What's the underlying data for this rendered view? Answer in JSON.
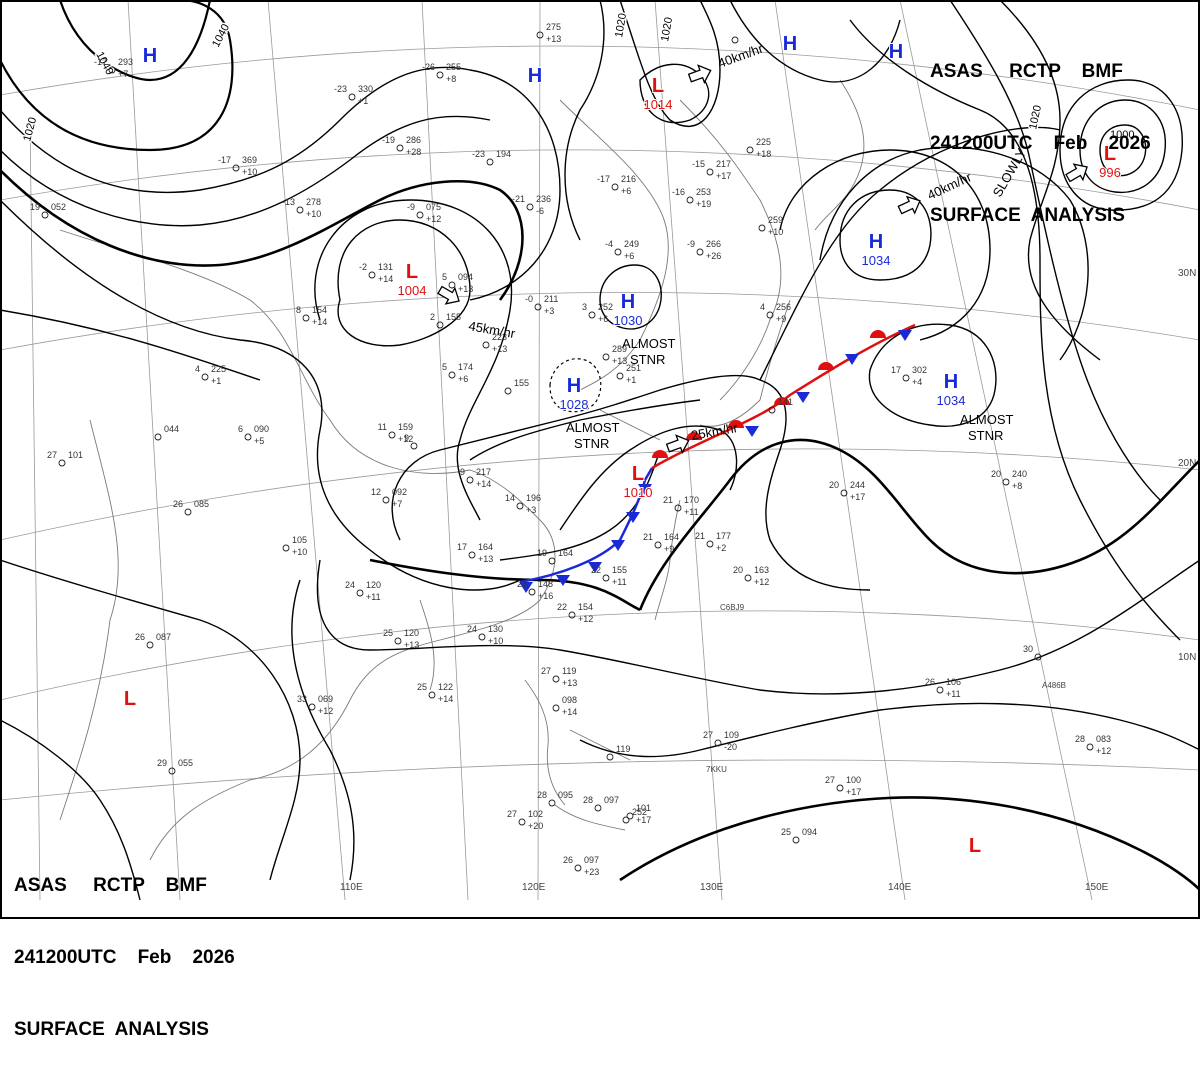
{
  "header": {
    "line1": "ASAS     RCTP    BMF",
    "line2": "241200UTC    Feb    2026",
    "line3": "SURFACE  ANALYSIS"
  },
  "colors": {
    "high": "#1a2bd6",
    "low": "#e01010",
    "warm_front": "#e01010",
    "cold_front": "#1a2bd6",
    "isobar": "#000000",
    "grid": "#9a9a9a",
    "coast": "#7a7a7a"
  },
  "lat_labels": [
    "30N",
    "20N",
    "10N"
  ],
  "lon_labels": [
    "110E",
    "120E",
    "130E",
    "140E",
    "150E"
  ],
  "isobar_labels": [
    "1040",
    "1040",
    "1020",
    "1020",
    "1020",
    "1020",
    "1000"
  ],
  "pressure_centers": [
    {
      "type": "H",
      "value": ""
    },
    {
      "type": "H",
      "value": ""
    },
    {
      "type": "L",
      "value": "1014"
    },
    {
      "type": "H",
      "value": ""
    },
    {
      "type": "H",
      "value": ""
    },
    {
      "type": "L",
      "value": "996"
    },
    {
      "type": "L",
      "value": "1004"
    },
    {
      "type": "H",
      "value": "1030"
    },
    {
      "type": "H",
      "value": "1028"
    },
    {
      "type": "H",
      "value": "1034"
    },
    {
      "type": "H",
      "value": "1034"
    },
    {
      "type": "L",
      "value": "1010"
    },
    {
      "type": "L",
      "value": ""
    },
    {
      "type": "L",
      "value": ""
    }
  ],
  "annotations": [
    {
      "text": "40km/hr"
    },
    {
      "text": "40km/hr"
    },
    {
      "text": "SLOWLY"
    },
    {
      "text": "45km/hr"
    },
    {
      "text": "25km/hr"
    },
    {
      "text": "ALMOST STNR"
    },
    {
      "text": "ALMOST STNR"
    },
    {
      "text": "ALMOST STNR"
    }
  ],
  "station_plots": [
    {
      "t": "-17",
      "p": "293",
      "c": "+7"
    },
    {
      "t": "-23",
      "p": "330",
      "c": "+1"
    },
    {
      "t": "-26",
      "p": "255",
      "c": "+8"
    },
    {
      "t": "",
      "p": "275",
      "c": "+13"
    },
    {
      "t": "",
      "p": "",
      "c": ""
    },
    {
      "t": "-17",
      "p": "369",
      "c": "+10"
    },
    {
      "t": "-19",
      "p": "286",
      "c": "+28"
    },
    {
      "t": "-23",
      "p": "194",
      "c": ""
    },
    {
      "t": "-15",
      "p": "217",
      "c": "+17"
    },
    {
      "t": "",
      "p": "225",
      "c": "+18"
    },
    {
      "t": "-13",
      "p": "278",
      "c": "+10"
    },
    {
      "t": "-9",
      "p": "075",
      "c": "+12"
    },
    {
      "t": "-21",
      "p": "236",
      "c": "-6"
    },
    {
      "t": "-17",
      "p": "216",
      "c": "+6"
    },
    {
      "t": "-16",
      "p": "253",
      "c": "+19"
    },
    {
      "t": "-9",
      "p": "266",
      "c": "+26"
    },
    {
      "t": "",
      "p": "259",
      "c": "+10"
    },
    {
      "t": "19",
      "p": "052",
      "c": ""
    },
    {
      "t": "-2",
      "p": "131",
      "c": "+14"
    },
    {
      "t": "5",
      "p": "094",
      "c": "+13"
    },
    {
      "t": "-4",
      "p": "249",
      "c": "+6"
    },
    {
      "t": "-0",
      "p": "211",
      "c": "+3"
    },
    {
      "t": "3",
      "p": "252",
      "c": "+6"
    },
    {
      "t": "4",
      "p": "256",
      "c": "+9"
    },
    {
      "t": "8",
      "p": "154",
      "c": "+14"
    },
    {
      "t": "2",
      "p": "155",
      "c": ""
    },
    {
      "t": "",
      "p": "223",
      "c": "+13"
    },
    {
      "t": "",
      "p": "289",
      "c": "+13"
    },
    {
      "t": "4",
      "p": "225",
      "c": "+1"
    },
    {
      "t": "5",
      "p": "174",
      "c": "+6"
    },
    {
      "t": "",
      "p": "251",
      "c": "+1"
    },
    {
      "t": "17",
      "p": "302",
      "c": "+4"
    },
    {
      "t": "",
      "p": "141",
      "c": ""
    },
    {
      "t": "6",
      "p": "090",
      "c": "+5"
    },
    {
      "t": "",
      "p": "044",
      "c": ""
    },
    {
      "t": "11",
      "p": "159",
      "c": "+12"
    },
    {
      "t": "9",
      "p": "",
      "c": ""
    },
    {
      "t": "27",
      "p": "101",
      "c": ""
    },
    {
      "t": "9",
      "p": "217",
      "c": "+14"
    },
    {
      "t": "",
      "p": "155",
      "c": ""
    },
    {
      "t": "12",
      "p": "092",
      "c": "+7"
    },
    {
      "t": "14",
      "p": "196",
      "c": "+3"
    },
    {
      "t": "21",
      "p": "170",
      "c": "+11"
    },
    {
      "t": "20",
      "p": "244",
      "c": "+17"
    },
    {
      "t": "20",
      "p": "240",
      "c": "+8"
    },
    {
      "t": "26",
      "p": "085",
      "c": ""
    },
    {
      "t": "",
      "p": "105",
      "c": "+10"
    },
    {
      "t": "17",
      "p": "164",
      "c": "+13"
    },
    {
      "t": "19",
      "p": "164",
      "c": ""
    },
    {
      "t": "21",
      "p": "164",
      "c": "+9"
    },
    {
      "t": "21",
      "p": "177",
      "c": "+2"
    },
    {
      "t": "20",
      "p": "163",
      "c": "+12"
    },
    {
      "t": "22",
      "p": "155",
      "c": "+11"
    },
    {
      "t": "22",
      "p": "148",
      "c": "+16"
    },
    {
      "t": "22",
      "p": "154",
      "c": "+12"
    },
    {
      "t": "24",
      "p": "120",
      "c": "+11"
    },
    {
      "t": "24",
      "p": "130",
      "c": "+10"
    },
    {
      "t": "25",
      "p": "120",
      "c": "+13"
    },
    {
      "t": "26",
      "p": "087",
      "c": ""
    },
    {
      "t": "30",
      "p": "",
      "c": ""
    },
    {
      "t": "25",
      "p": "122",
      "c": "+14"
    },
    {
      "t": "33",
      "p": "069",
      "c": "+12"
    },
    {
      "t": "27",
      "p": "119",
      "c": "+13"
    },
    {
      "t": "26",
      "p": "106",
      "c": "+11"
    },
    {
      "t": "",
      "p": "098",
      "c": "+14"
    },
    {
      "t": "27",
      "p": "109",
      "c": "-20"
    },
    {
      "t": "",
      "p": "119",
      "c": ""
    },
    {
      "t": "28",
      "p": "083",
      "c": "+12"
    },
    {
      "t": "29",
      "p": "055",
      "c": ""
    },
    {
      "t": "27",
      "p": "100",
      "c": "+17"
    },
    {
      "t": "28",
      "p": "095",
      "c": ""
    },
    {
      "t": "28",
      "p": "097",
      "c": ""
    },
    {
      "t": "",
      "p": "101",
      "c": "+17"
    },
    {
      "t": "",
      "p": "252",
      "c": ""
    },
    {
      "t": "27",
      "p": "102",
      "c": "+20"
    },
    {
      "t": "25",
      "p": "094",
      "c": ""
    },
    {
      "t": "26",
      "p": "097",
      "c": "+23"
    }
  ],
  "ship_ids": [
    "C6BJ9",
    "A486B",
    "7KKU"
  ]
}
